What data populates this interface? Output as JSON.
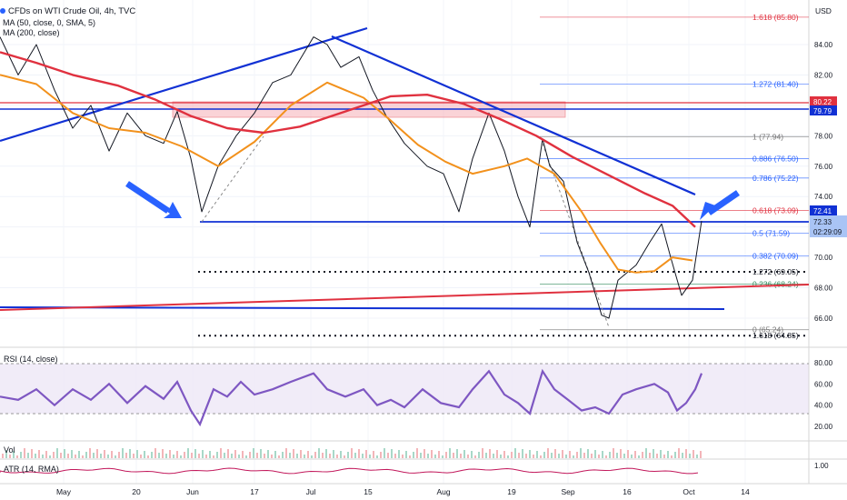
{
  "header": {
    "title": "CFDs on WTI Crude Oil, 4h, TVC",
    "ma50": "MA (50, close, 0, SMA, 5)",
    "ma200": "MA (200, close)",
    "currency": "USD"
  },
  "rsi_label": "RSI (14, close)",
  "vol_label": "Vol",
  "atr_label": "ATR (14, RMA)",
  "colors": {
    "price": "#131722",
    "ma50": "#f2911c",
    "ma200": "#e0313f",
    "trend": "#1131d4",
    "rsi": "#7e57c2",
    "zone": "#f6a9b1",
    "fib_green": "#2f8a5a",
    "fib_blue": "#2962ff"
  },
  "price_badges": {
    "level_80_22": "80.22",
    "level_79_79": "79.79",
    "last": "72.41",
    "prev": "72.33",
    "countdown": "02:29:09"
  },
  "fib_labels": [
    {
      "text": "1.618 (85.80)",
      "value": 85.8,
      "color": "#e0313f"
    },
    {
      "text": "1.272 (81.40)",
      "value": 81.4,
      "color": "#2962ff"
    },
    {
      "text": "1 (77.94)",
      "value": 77.94,
      "color": "#777777"
    },
    {
      "text": "0.886 (76.50)",
      "value": 76.5,
      "color": "#2962ff"
    },
    {
      "text": "0.786 (75.22)",
      "value": 75.22,
      "color": "#2962ff"
    },
    {
      "text": "0.618 (73.09)",
      "value": 73.09,
      "color": "#e0313f"
    },
    {
      "text": "0.5 (71.59)",
      "value": 71.59,
      "color": "#2962ff"
    },
    {
      "text": "0.382 (70.09)",
      "value": 70.09,
      "color": "#2962ff"
    },
    {
      "text": "1.272 (69.05)",
      "value": 69.05,
      "color": "#131722"
    },
    {
      "text": "0.236 (68.24)",
      "value": 68.24,
      "color": "#2f8a5a"
    },
    {
      "text": "0 (65.24)",
      "value": 65.24,
      "color": "#777777"
    },
    {
      "text": "1.618 (64.85)",
      "value": 64.85,
      "color": "#131722"
    }
  ],
  "chart_data": {
    "type": "line",
    "title": "CFDs on WTI Crude Oil, 4h, TVC",
    "y_ticks": [
      66,
      68,
      70,
      72,
      74,
      76,
      78,
      80,
      82,
      84
    ],
    "ylim": [
      64.6,
      86.4
    ],
    "x_ticks": [
      "May",
      "20",
      "Jun",
      "17",
      "Jul",
      "15",
      "Aug",
      "19",
      "Sep",
      "16",
      "Oct",
      "14"
    ],
    "series": [
      {
        "values": [
          [
            0,
            84.5
          ],
          [
            20,
            82
          ],
          [
            40,
            84
          ],
          [
            60,
            81
          ],
          [
            80,
            78.5
          ],
          [
            100,
            80
          ],
          [
            120,
            77
          ],
          [
            140,
            79.5
          ],
          [
            160,
            78
          ],
          [
            180,
            77.5
          ],
          [
            195,
            79.6
          ],
          [
            210,
            76.5
          ],
          [
            222,
            73
          ],
          [
            240,
            76
          ],
          [
            260,
            78
          ],
          [
            280,
            79.5
          ],
          [
            300,
            81.5
          ],
          [
            320,
            82
          ],
          [
            345,
            84.5
          ],
          [
            360,
            84
          ],
          [
            375,
            82.5
          ],
          [
            395,
            83.2
          ],
          [
            410,
            81
          ],
          [
            425,
            79.3
          ],
          [
            445,
            77.5
          ],
          [
            470,
            76
          ],
          [
            488,
            75.5
          ],
          [
            505,
            73
          ],
          [
            520,
            76.5
          ],
          [
            538,
            79.5
          ],
          [
            555,
            77
          ],
          [
            570,
            74
          ],
          [
            583,
            72
          ],
          [
            597,
            77.8
          ],
          [
            605,
            76
          ],
          [
            620,
            75
          ],
          [
            635,
            71
          ],
          [
            648,
            69
          ],
          [
            662,
            66.2
          ],
          [
            670,
            66
          ],
          [
            680,
            68.5
          ],
          [
            700,
            69.5
          ],
          [
            715,
            71
          ],
          [
            728,
            72.2
          ],
          [
            738,
            70
          ],
          [
            750,
            67.5
          ],
          [
            762,
            68.5
          ],
          [
            772,
            72.4
          ]
        ]
      },
      {
        "name": "MA (50, close, 0, SMA, 5)",
        "values": [
          [
            0,
            82
          ],
          [
            40,
            81.4
          ],
          [
            80,
            79.5
          ],
          [
            120,
            78.5
          ],
          [
            160,
            78.2
          ],
          [
            200,
            77.3
          ],
          [
            240,
            76
          ],
          [
            280,
            77.6
          ],
          [
            320,
            80
          ],
          [
            360,
            81.5
          ],
          [
            400,
            80.5
          ],
          [
            430,
            79
          ],
          [
            460,
            77.4
          ],
          [
            490,
            76.3
          ],
          [
            520,
            75.5
          ],
          [
            555,
            76
          ],
          [
            580,
            76.5
          ],
          [
            610,
            75.5
          ],
          [
            640,
            73
          ],
          [
            660,
            71
          ],
          [
            680,
            69.2
          ],
          [
            700,
            69
          ],
          [
            720,
            69.1
          ],
          [
            740,
            70
          ],
          [
            762,
            69.8
          ]
        ]
      },
      {
        "name": "MA (200, close)",
        "values": [
          [
            0,
            83.5
          ],
          [
            40,
            82.8
          ],
          [
            80,
            82
          ],
          [
            130,
            81.3
          ],
          [
            170,
            80.4
          ],
          [
            210,
            79.3
          ],
          [
            250,
            78.5
          ],
          [
            290,
            78.2
          ],
          [
            330,
            78.6
          ],
          [
            380,
            79.6
          ],
          [
            430,
            80.6
          ],
          [
            470,
            80.7
          ],
          [
            510,
            80.1
          ],
          [
            550,
            79.1
          ],
          [
            590,
            78
          ],
          [
            630,
            76.6
          ],
          [
            670,
            75.4
          ],
          [
            710,
            74.2
          ],
          [
            740,
            73.4
          ],
          [
            765,
            72
          ]
        ]
      }
    ],
    "rsi": {
      "levels": [
        80,
        60,
        40,
        20
      ],
      "ylim": [
        15,
        85
      ],
      "values": [
        [
          0,
          48
        ],
        [
          20,
          45
        ],
        [
          40,
          55
        ],
        [
          60,
          40
        ],
        [
          80,
          55
        ],
        [
          100,
          45
        ],
        [
          120,
          60
        ],
        [
          140,
          42
        ],
        [
          160,
          58
        ],
        [
          180,
          46
        ],
        [
          195,
          62
        ],
        [
          210,
          35
        ],
        [
          220,
          22
        ],
        [
          235,
          55
        ],
        [
          250,
          48
        ],
        [
          265,
          62
        ],
        [
          280,
          50
        ],
        [
          300,
          55
        ],
        [
          320,
          62
        ],
        [
          345,
          70
        ],
        [
          360,
          55
        ],
        [
          380,
          48
        ],
        [
          400,
          55
        ],
        [
          415,
          40
        ],
        [
          430,
          45
        ],
        [
          445,
          38
        ],
        [
          465,
          55
        ],
        [
          485,
          42
        ],
        [
          505,
          38
        ],
        [
          520,
          55
        ],
        [
          538,
          72
        ],
        [
          555,
          50
        ],
        [
          570,
          42
        ],
        [
          583,
          32
        ],
        [
          597,
          72
        ],
        [
          610,
          55
        ],
        [
          625,
          45
        ],
        [
          640,
          35
        ],
        [
          655,
          38
        ],
        [
          670,
          32
        ],
        [
          685,
          50
        ],
        [
          700,
          55
        ],
        [
          720,
          60
        ],
        [
          735,
          52
        ],
        [
          745,
          35
        ],
        [
          755,
          42
        ],
        [
          765,
          55
        ],
        [
          772,
          70
        ]
      ]
    },
    "atr": {
      "last_label": "1.00"
    }
  }
}
